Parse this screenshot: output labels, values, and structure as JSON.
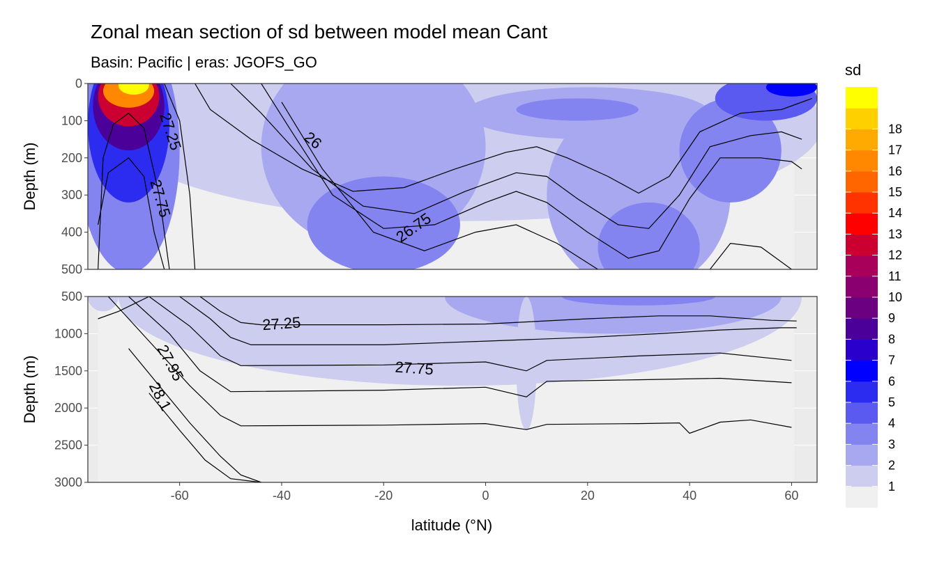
{
  "chart_data": {
    "type": "heatmap",
    "title": "Zonal mean section of sd between model mean Cant",
    "subtitle": "Basin: Pacific | eras: JGOFS_GO",
    "xlabel": "latitude (°N)",
    "ylabel_top": "Depth (m)",
    "ylabel_bottom": "Depth (m)",
    "xlim": [
      -78,
      65
    ],
    "x_ticks": [
      -60,
      -40,
      -20,
      0,
      20,
      40,
      60
    ],
    "x_tick_labels": [
      "-60",
      "-40",
      "-20",
      "0",
      "20",
      "40",
      "60"
    ],
    "panels": [
      {
        "name": "upper",
        "ylim": [
          0,
          500
        ],
        "y_ticks": [
          0,
          100,
          200,
          300,
          400,
          500
        ],
        "y_tick_labels": [
          "0",
          "100",
          "200",
          "300",
          "400",
          "500"
        ]
      },
      {
        "name": "lower",
        "ylim": [
          500,
          3000
        ],
        "y_ticks": [
          500,
          1000,
          1500,
          2000,
          2500,
          3000
        ],
        "y_tick_labels": [
          "500",
          "1000",
          "1500",
          "2000",
          "2500",
          "3000"
        ]
      }
    ],
    "legend": {
      "title": "sd",
      "position": "right",
      "levels": [
        1,
        2,
        3,
        4,
        5,
        6,
        7,
        8,
        9,
        10,
        11,
        12,
        13,
        14,
        15,
        16,
        17,
        18
      ],
      "labels": [
        "1",
        "2",
        "3",
        "4",
        "5",
        "6",
        "7",
        "8",
        "9",
        "10",
        "11",
        "12",
        "13",
        "14",
        "15",
        "16",
        "17",
        "18"
      ],
      "colors": [
        "#f0f0f0",
        "#cdcdf0",
        "#a8a8f0",
        "#8484f0",
        "#5a5af0",
        "#2c2cf0",
        "#0000ff",
        "#2a00cc",
        "#4b0099",
        "#6b0080",
        "#8b0070",
        "#a8005a",
        "#cc0030",
        "#ff0000",
        "#ff3300",
        "#ff6600",
        "#ff8800",
        "#ffaa00",
        "#ffd000",
        "#ffff00"
      ]
    },
    "contour_labels": [
      {
        "text": "27.25",
        "x": -62,
        "y": 130
      },
      {
        "text": "26",
        "x": -34,
        "y": 155
      },
      {
        "text": "27.75",
        "x": -64,
        "y": 310
      },
      {
        "text": "26.75",
        "x": -14,
        "y": 390
      },
      {
        "text": "27.25",
        "x": -40,
        "y": 880
      },
      {
        "text": "27.95",
        "x": -62,
        "y": 1400
      },
      {
        "text": "27.75",
        "x": -14,
        "y": 1480
      },
      {
        "text": "28.1",
        "x": -64,
        "y": 1850
      }
    ],
    "grid": true
  }
}
